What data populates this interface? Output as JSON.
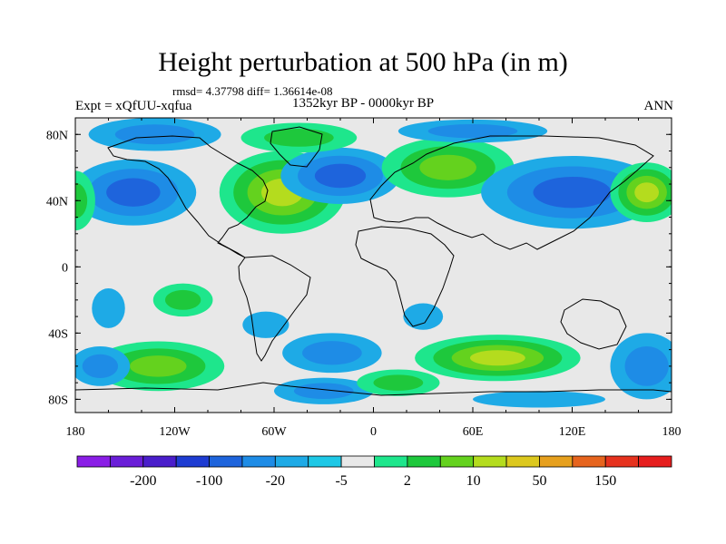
{
  "title": "Height perturbation at 500 hPa (in m)",
  "stats": "rmsd= 4.37798 diff= 1.36614e-08",
  "left_label": "Expt = xQfUU-xqfua",
  "center_label": "1352kyr BP - 0000kyr BP",
  "right_label": "ANN",
  "lat_labels": [
    {
      "text": "80N",
      "lat": 80
    },
    {
      "text": "40N",
      "lat": 40
    },
    {
      "text": "0",
      "lat": 0
    },
    {
      "text": "40S",
      "lat": -40
    },
    {
      "text": "80S",
      "lat": -80
    }
  ],
  "lon_labels": [
    {
      "text": "180",
      "lon": -180
    },
    {
      "text": "120W",
      "lon": -120
    },
    {
      "text": "60W",
      "lon": -60
    },
    {
      "text": "0",
      "lon": 0
    },
    {
      "text": "60E",
      "lon": 60
    },
    {
      "text": "120E",
      "lon": 120
    },
    {
      "text": "180",
      "lon": 180
    }
  ],
  "colorbar": {
    "colors": [
      "#8a1ee6",
      "#6a1ed8",
      "#4a1ecb",
      "#1e3cd2",
      "#1e64dc",
      "#1e8ce6",
      "#1eaae6",
      "#1ec8e6",
      "#e8e8e8",
      "#1ee68c",
      "#1ec83c",
      "#64d21e",
      "#b4dc1e",
      "#dcc81e",
      "#e6a01e",
      "#e6641e",
      "#e6321e",
      "#e61e1e"
    ],
    "labels": [
      {
        "text": "-200",
        "after_box": 2
      },
      {
        "text": "-100",
        "after_box": 4
      },
      {
        "text": "-20",
        "after_box": 6
      },
      {
        "text": "-5",
        "after_box": 8
      },
      {
        "text": "2",
        "after_box": 10
      },
      {
        "text": "10",
        "after_box": 12
      },
      {
        "text": "50",
        "after_box": 14
      },
      {
        "text": "150",
        "after_box": 16
      }
    ]
  },
  "blobs": [
    {
      "lon": -145,
      "lat": 45,
      "rx": 38,
      "ry": 20,
      "c": [
        "#1eaae6",
        "#1e8ce6",
        "#1e64dc"
      ]
    },
    {
      "lon": -132,
      "lat": 80,
      "rx": 40,
      "ry": 10,
      "c": [
        "#1eaae6",
        "#1e8ce6"
      ]
    },
    {
      "lon": -55,
      "lat": 45,
      "rx": 38,
      "ry": 25,
      "c": [
        "#1ee68c",
        "#1ec83c",
        "#64d21e",
        "#b4dc1e"
      ]
    },
    {
      "lon": -20,
      "lat": 55,
      "rx": 36,
      "ry": 17,
      "c": [
        "#1eaae6",
        "#1e8ce6",
        "#1e64dc"
      ]
    },
    {
      "lon": -45,
      "lat": 78,
      "rx": 35,
      "ry": 9,
      "c": [
        "#1ee68c",
        "#1ec83c"
      ]
    },
    {
      "lon": 45,
      "lat": 60,
      "rx": 40,
      "ry": 18,
      "c": [
        "#1ee68c",
        "#1ec83c",
        "#64d21e"
      ]
    },
    {
      "lon": 60,
      "lat": 82,
      "rx": 45,
      "ry": 7,
      "c": [
        "#1eaae6",
        "#1e8ce6"
      ]
    },
    {
      "lon": 120,
      "lat": 45,
      "rx": 55,
      "ry": 22,
      "c": [
        "#1eaae6",
        "#1e8ce6",
        "#1e64dc"
      ]
    },
    {
      "lon": 165,
      "lat": 45,
      "rx": 22,
      "ry": 18,
      "c": [
        "#1ee68c",
        "#1ec83c",
        "#64d21e",
        "#b4dc1e"
      ]
    },
    {
      "lon": -180,
      "lat": 40,
      "rx": 12,
      "ry": 18,
      "c": [
        "#1ee68c",
        "#1ec83c"
      ]
    },
    {
      "lon": -115,
      "lat": -20,
      "rx": 18,
      "ry": 10,
      "c": [
        "#1ee68c",
        "#1ec83c"
      ]
    },
    {
      "lon": -65,
      "lat": -35,
      "rx": 14,
      "ry": 8,
      "c": [
        "#1eaae6"
      ]
    },
    {
      "lon": -160,
      "lat": -25,
      "rx": 10,
      "ry": 12,
      "c": [
        "#1eaae6"
      ]
    },
    {
      "lon": -130,
      "lat": -60,
      "rx": 40,
      "ry": 15,
      "c": [
        "#1ee68c",
        "#1ec83c",
        "#64d21e"
      ]
    },
    {
      "lon": -25,
      "lat": -52,
      "rx": 30,
      "ry": 12,
      "c": [
        "#1eaae6",
        "#1e8ce6"
      ]
    },
    {
      "lon": -30,
      "lat": -75,
      "rx": 30,
      "ry": 8,
      "c": [
        "#1eaae6",
        "#1e8ce6"
      ]
    },
    {
      "lon": 75,
      "lat": -55,
      "rx": 50,
      "ry": 14,
      "c": [
        "#1ee68c",
        "#1ec83c",
        "#64d21e",
        "#b4dc1e"
      ]
    },
    {
      "lon": 165,
      "lat": -60,
      "rx": 22,
      "ry": 20,
      "c": [
        "#1eaae6",
        "#1e8ce6"
      ]
    },
    {
      "lon": -165,
      "lat": -60,
      "rx": 18,
      "ry": 12,
      "c": [
        "#1eaae6",
        "#1e8ce6"
      ]
    },
    {
      "lon": 30,
      "lat": -30,
      "rx": 12,
      "ry": 8,
      "c": [
        "#1eaae6"
      ]
    },
    {
      "lon": 15,
      "lat": -70,
      "rx": 25,
      "ry": 8,
      "c": [
        "#1ee68c",
        "#1ec83c"
      ]
    },
    {
      "lon": 100,
      "lat": -80,
      "rx": 40,
      "ry": 5,
      "c": [
        "#1eaae6"
      ]
    }
  ]
}
